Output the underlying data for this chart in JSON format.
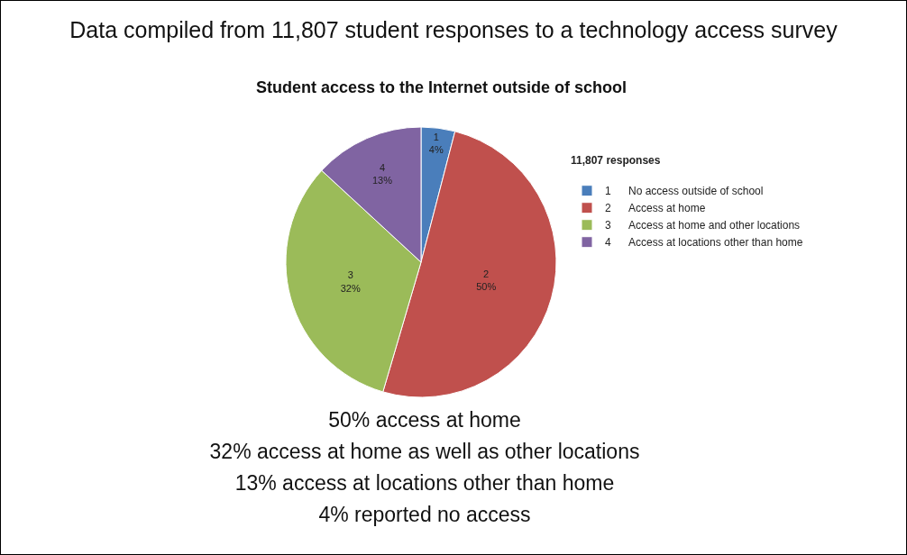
{
  "chart_data": {
    "type": "pie",
    "title": "Data compiled from 11,807 student responses to a technology access survey",
    "subtitle": "Student access to the Internet outside of school",
    "legend_title": "11,807 responses",
    "legend": "right",
    "categories": [
      "1",
      "2",
      "3",
      "4"
    ],
    "values": [
      4,
      50,
      32,
      13
    ],
    "value_labels": [
      "4%",
      "50%",
      "32%",
      "13%"
    ],
    "colors": [
      "#4a7ebb",
      "#c0504d",
      "#9bbb59",
      "#8064a2"
    ],
    "annotations": [
      "No access outside of school",
      "Access at home",
      "Access at home and other locations",
      "Access at locations other than home",
      "50% access at home",
      "32% access at home as well as other locations",
      "13% access at locations other than home",
      "4% reported no access"
    ]
  }
}
